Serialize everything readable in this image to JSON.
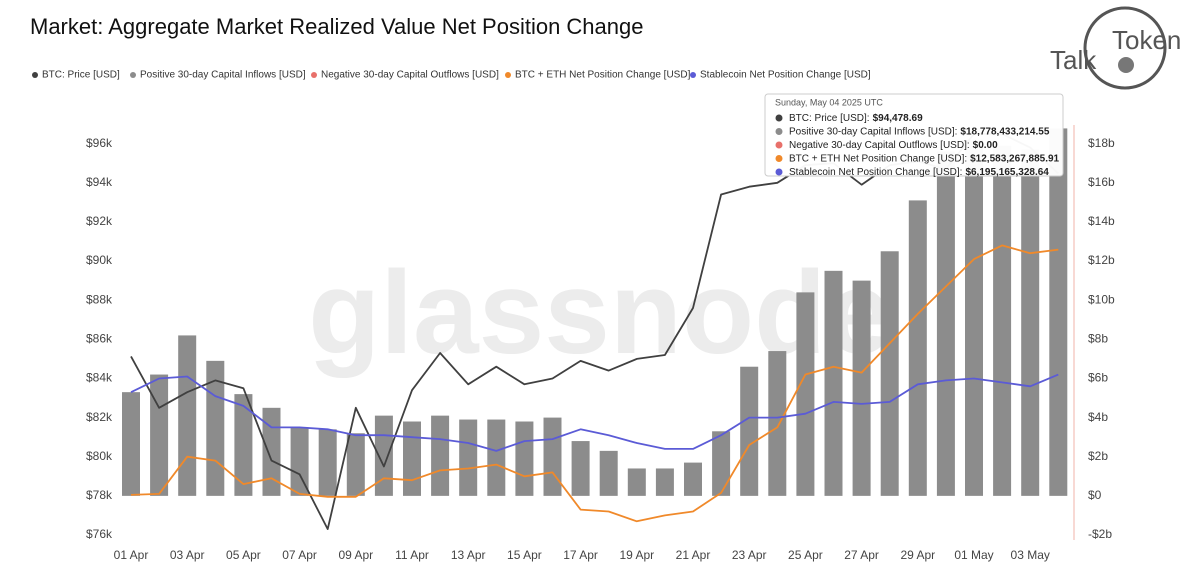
{
  "chart_data": {
    "type": "combo",
    "title": "Market: Aggregate Market Realized Value Net Position Change",
    "watermark": "glassnode",
    "logo": {
      "left": "Talk",
      "right": "Token"
    },
    "categories": [
      "01 Apr",
      null,
      "03 Apr",
      null,
      "05 Apr",
      null,
      "07 Apr",
      null,
      "09 Apr",
      null,
      "11 Apr",
      null,
      "13 Apr",
      null,
      "15 Apr",
      null,
      "17 Apr",
      null,
      "19 Apr",
      null,
      "21 Apr",
      null,
      "23 Apr",
      null,
      "25 Apr",
      null,
      "27 Apr",
      null,
      "29 Apr",
      null,
      "01 May",
      null,
      "03 May",
      null
    ],
    "ylim": [
      76000,
      96800
    ],
    "yticks": [
      {
        "value": 76000,
        "label": "$76k"
      },
      {
        "value": 78000,
        "label": "$78k"
      },
      {
        "value": 80000,
        "label": "$80k"
      },
      {
        "value": 82000,
        "label": "$82k"
      },
      {
        "value": 84000,
        "label": "$84k"
      },
      {
        "value": 86000,
        "label": "$86k"
      },
      {
        "value": 88000,
        "label": "$88k"
      },
      {
        "value": 90000,
        "label": "$90k"
      },
      {
        "value": 92000,
        "label": "$92k"
      },
      {
        "value": 94000,
        "label": "$94k"
      },
      {
        "value": 96000,
        "label": "$96k"
      }
    ],
    "y2lim": [
      -2000000000.0,
      18800000000.0
    ],
    "y2ticks": [
      {
        "value": -2000000000.0,
        "label": "-$2b"
      },
      {
        "value": 0,
        "label": "$0"
      },
      {
        "value": 2000000000.0,
        "label": "$2b"
      },
      {
        "value": 4000000000.0,
        "label": "$4b"
      },
      {
        "value": 6000000000.0,
        "label": "$6b"
      },
      {
        "value": 8000000000.0,
        "label": "$8b"
      },
      {
        "value": 10000000000.0,
        "label": "$10b"
      },
      {
        "value": 12000000000.0,
        "label": "$12b"
      },
      {
        "value": 14000000000.0,
        "label": "$14b"
      },
      {
        "value": 16000000000.0,
        "label": "$16b"
      },
      {
        "value": 18000000000.0,
        "label": "$18b"
      }
    ],
    "series": [
      {
        "name": "BTC: Price [USD]",
        "color": "#404040",
        "kind": "line",
        "axis": "y",
        "values": [
          85130,
          82500,
          83300,
          83900,
          83500,
          79800,
          79100,
          76300,
          82500,
          79500,
          83400,
          85300,
          83700,
          84600,
          83700,
          84000,
          84900,
          84400,
          85000,
          85200,
          87600,
          93400,
          93800,
          94000,
          94900,
          95000,
          93900,
          94900,
          95100,
          94700,
          96500,
          96500,
          95800,
          94478.69
        ]
      },
      {
        "name": "Positive 30-day Capital Inflows [USD]",
        "color": "#8c8c8c",
        "kind": "bar",
        "axis": "y2",
        "values": [
          5300000000.0,
          6200000000.0,
          8200000000.0,
          6900000000.0,
          5200000000.0,
          4500000000.0,
          3500000000.0,
          3400000000.0,
          3200000000.0,
          4100000000.0,
          3800000000.0,
          4100000000.0,
          3900000000.0,
          3900000000.0,
          3800000000.0,
          4000000000.0,
          2800000000.0,
          2300000000.0,
          1400000000.0,
          1400000000.0,
          1700000000.0,
          3300000000.0,
          6600000000.0,
          7400000000.0,
          10400000000.0,
          11500000000.0,
          11000000000.0,
          12500000000.0,
          15100000000.0,
          17600000000.0,
          18200000000.0,
          17900000000.0,
          17700000000.0,
          18778433214.55
        ]
      },
      {
        "name": "Negative 30-day Capital Outflows [USD]",
        "color": "#e8706a",
        "kind": "none",
        "axis": "y2"
      },
      {
        "name": "BTC + ETH Net Position Change [USD]",
        "color": "#f0892a",
        "kind": "line",
        "axis": "y2",
        "values": [
          50000000.0,
          100000000.0,
          2000000000.0,
          1800000000.0,
          600000000.0,
          900000000.0,
          100000000.0,
          -50000000.0,
          -50000000.0,
          900000000.0,
          800000000.0,
          1300000000.0,
          1400000000.0,
          1600000000.0,
          1000000000.0,
          1200000000.0,
          -700000000.0,
          -800000000.0,
          -1300000000.0,
          -1000000000.0,
          -800000000.0,
          150000000.0,
          2600000000.0,
          3500000000.0,
          6200000000.0,
          6600000000.0,
          6300000000.0,
          7800000000.0,
          9300000000.0,
          10700000000.0,
          12100000000.0,
          12800000000.0,
          12400000000.0,
          12583267885.91
        ]
      },
      {
        "name": "Stablecoin Net Position Change [USD]",
        "color": "#5b5bd6",
        "kind": "line",
        "axis": "y2",
        "values": [
          5300000000.0,
          6000000000.0,
          6100000000.0,
          5100000000.0,
          4600000000.0,
          3500000000.0,
          3500000000.0,
          3400000000.0,
          3100000000.0,
          3100000000.0,
          3000000000.0,
          2900000000.0,
          2700000000.0,
          2300000000.0,
          2800000000.0,
          2900000000.0,
          3400000000.0,
          3100000000.0,
          2700000000.0,
          2400000000.0,
          2400000000.0,
          3100000000.0,
          4000000000.0,
          4000000000.0,
          4200000000.0,
          4800000000.0,
          4700000000.0,
          4800000000.0,
          5700000000.0,
          5900000000.0,
          6000000000.0,
          5800000000.0,
          5600000000.0,
          6195165328.64
        ]
      }
    ],
    "tooltip": {
      "date": "Sunday, May 04 2025 UTC",
      "items": [
        {
          "label": "BTC: Price [USD]:",
          "value": "$94,478.69"
        },
        {
          "label": "Positive 30-day Capital Inflows [USD]:",
          "value": "$18,778,433,214.55"
        },
        {
          "label": "Negative 30-day Capital Outflows [USD]:",
          "value": "$0.00"
        },
        {
          "label": "BTC + ETH Net Position Change [USD]:",
          "value": "$12,583,267,885.91"
        },
        {
          "label": "Stablecoin Net Position Change [USD]:",
          "value": "$6,195,165,328.64"
        }
      ]
    }
  }
}
